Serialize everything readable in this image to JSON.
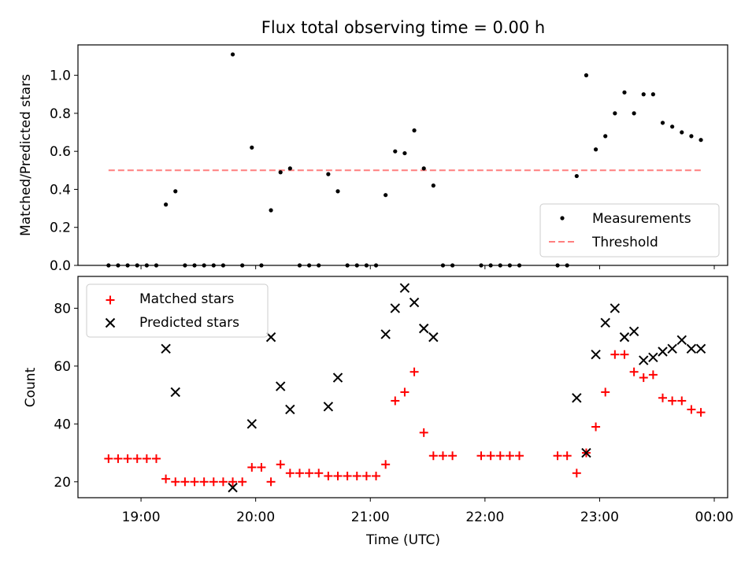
{
  "chart_data": [
    {
      "type": "scatter",
      "title": "Flux total observing time = 0.00 h",
      "xlabel": "",
      "ylabel": "Matched/Predicted stars",
      "xlim": [
        "18:27",
        "24:07"
      ],
      "ylim": [
        0,
        1.16
      ],
      "yticks": [
        0.0,
        0.2,
        0.4,
        0.6,
        0.8,
        1.0
      ],
      "ytick_labels": [
        "0.0",
        "0.2",
        "0.4",
        "0.6",
        "0.8",
        "1.0"
      ],
      "legend_position": "lower right",
      "series": [
        {
          "name": "Measurements",
          "marker": "dot",
          "color": "#000000",
          "points": [
            [
              "18:43",
              0.0
            ],
            [
              "18:48",
              0.0
            ],
            [
              "18:53",
              0.0
            ],
            [
              "18:58",
              0.0
            ],
            [
              "19:03",
              0.0
            ],
            [
              "19:08",
              0.0
            ],
            [
              "19:13",
              0.32
            ],
            [
              "19:18",
              0.39
            ],
            [
              "19:23",
              0.0
            ],
            [
              "19:28",
              0.0
            ],
            [
              "19:33",
              0.0
            ],
            [
              "19:38",
              0.0
            ],
            [
              "19:43",
              0.0
            ],
            [
              "19:48",
              1.11
            ],
            [
              "19:53",
              0.0
            ],
            [
              "19:58",
              0.62
            ],
            [
              "20:03",
              0.0
            ],
            [
              "20:08",
              0.29
            ],
            [
              "20:13",
              0.49
            ],
            [
              "20:18",
              0.51
            ],
            [
              "20:23",
              0.0
            ],
            [
              "20:28",
              0.0
            ],
            [
              "20:33",
              0.0
            ],
            [
              "20:38",
              0.48
            ],
            [
              "20:43",
              0.39
            ],
            [
              "20:48",
              0.0
            ],
            [
              "20:53",
              0.0
            ],
            [
              "20:58",
              0.0
            ],
            [
              "21:03",
              0.0
            ],
            [
              "21:08",
              0.37
            ],
            [
              "21:13",
              0.6
            ],
            [
              "21:18",
              0.59
            ],
            [
              "21:23",
              0.71
            ],
            [
              "21:28",
              0.51
            ],
            [
              "21:33",
              0.42
            ],
            [
              "21:38",
              0.0
            ],
            [
              "21:43",
              0.0
            ],
            [
              "21:58",
              0.0
            ],
            [
              "22:03",
              0.0
            ],
            [
              "22:08",
              0.0
            ],
            [
              "22:13",
              0.0
            ],
            [
              "22:18",
              0.0
            ],
            [
              "22:38",
              0.0
            ],
            [
              "22:43",
              0.0
            ],
            [
              "22:48",
              0.47
            ],
            [
              "22:53",
              1.0
            ],
            [
              "22:58",
              0.61
            ],
            [
              "23:03",
              0.68
            ],
            [
              "23:08",
              0.8
            ],
            [
              "23:13",
              0.91
            ],
            [
              "23:18",
              0.8
            ],
            [
              "23:23",
              0.9
            ],
            [
              "23:28",
              0.9
            ],
            [
              "23:33",
              0.75
            ],
            [
              "23:38",
              0.73
            ],
            [
              "23:43",
              0.7
            ],
            [
              "23:48",
              0.68
            ],
            [
              "23:53",
              0.66
            ]
          ]
        },
        {
          "name": "Threshold",
          "style": "dashed",
          "color": "#ff7f7f",
          "points": [
            [
              "18:43",
              0.5
            ],
            [
              "23:53",
              0.5
            ]
          ]
        }
      ]
    },
    {
      "type": "scatter",
      "title": "",
      "xlabel": "Time (UTC)",
      "ylabel": "Count",
      "xlim": [
        "18:27",
        "24:07"
      ],
      "ylim": [
        14.5,
        91
      ],
      "yticks": [
        20,
        40,
        60,
        80
      ],
      "ytick_labels": [
        "20",
        "40",
        "60",
        "80"
      ],
      "xticks": [
        "19:00",
        "20:00",
        "21:00",
        "22:00",
        "23:00",
        "24:00"
      ],
      "xtick_labels": [
        "19:00",
        "20:00",
        "21:00",
        "22:00",
        "23:00",
        "00:00"
      ],
      "legend_position": "upper left",
      "series": [
        {
          "name": "Matched stars",
          "marker": "plus",
          "color": "#ff0000",
          "points": [
            [
              "18:43",
              28
            ],
            [
              "18:48",
              28
            ],
            [
              "18:53",
              28
            ],
            [
              "18:58",
              28
            ],
            [
              "19:03",
              28
            ],
            [
              "19:08",
              28
            ],
            [
              "19:13",
              21
            ],
            [
              "19:18",
              20
            ],
            [
              "19:23",
              20
            ],
            [
              "19:28",
              20
            ],
            [
              "19:33",
              20
            ],
            [
              "19:38",
              20
            ],
            [
              "19:43",
              20
            ],
            [
              "19:48",
              20
            ],
            [
              "19:53",
              20
            ],
            [
              "19:58",
              25
            ],
            [
              "20:03",
              25
            ],
            [
              "20:08",
              20
            ],
            [
              "20:13",
              26
            ],
            [
              "20:18",
              23
            ],
            [
              "20:23",
              23
            ],
            [
              "20:28",
              23
            ],
            [
              "20:33",
              23
            ],
            [
              "20:38",
              22
            ],
            [
              "20:43",
              22
            ],
            [
              "20:48",
              22
            ],
            [
              "20:53",
              22
            ],
            [
              "20:58",
              22
            ],
            [
              "21:03",
              22
            ],
            [
              "21:08",
              26
            ],
            [
              "21:13",
              48
            ],
            [
              "21:18",
              51
            ],
            [
              "21:23",
              58
            ],
            [
              "21:28",
              37
            ],
            [
              "21:33",
              29
            ],
            [
              "21:38",
              29
            ],
            [
              "21:43",
              29
            ],
            [
              "21:58",
              29
            ],
            [
              "22:03",
              29
            ],
            [
              "22:08",
              29
            ],
            [
              "22:13",
              29
            ],
            [
              "22:18",
              29
            ],
            [
              "22:38",
              29
            ],
            [
              "22:43",
              29
            ],
            [
              "22:48",
              23
            ],
            [
              "22:53",
              30
            ],
            [
              "22:58",
              39
            ],
            [
              "23:03",
              51
            ],
            [
              "23:08",
              64
            ],
            [
              "23:13",
              64
            ],
            [
              "23:18",
              58
            ],
            [
              "23:23",
              56
            ],
            [
              "23:28",
              57
            ],
            [
              "23:33",
              49
            ],
            [
              "23:38",
              48
            ],
            [
              "23:43",
              48
            ],
            [
              "23:48",
              45
            ],
            [
              "23:53",
              44
            ]
          ]
        },
        {
          "name": "Predicted stars",
          "marker": "x",
          "color": "#000000",
          "points": [
            [
              "19:13",
              66
            ],
            [
              "19:18",
              51
            ],
            [
              "19:48",
              18
            ],
            [
              "19:58",
              40
            ],
            [
              "20:08",
              70
            ],
            [
              "20:13",
              53
            ],
            [
              "20:18",
              45
            ],
            [
              "20:38",
              46
            ],
            [
              "20:43",
              56
            ],
            [
              "21:08",
              71
            ],
            [
              "21:13",
              80
            ],
            [
              "21:18",
              87
            ],
            [
              "21:23",
              82
            ],
            [
              "21:28",
              73
            ],
            [
              "21:33",
              70
            ],
            [
              "22:48",
              49
            ],
            [
              "22:53",
              30
            ],
            [
              "22:58",
              64
            ],
            [
              "23:03",
              75
            ],
            [
              "23:08",
              80
            ],
            [
              "23:13",
              70
            ],
            [
              "23:18",
              72
            ],
            [
              "23:23",
              62
            ],
            [
              "23:28",
              63
            ],
            [
              "23:33",
              65
            ],
            [
              "23:38",
              66
            ],
            [
              "23:43",
              69
            ],
            [
              "23:48",
              66
            ],
            [
              "23:53",
              66
            ]
          ]
        }
      ]
    }
  ]
}
